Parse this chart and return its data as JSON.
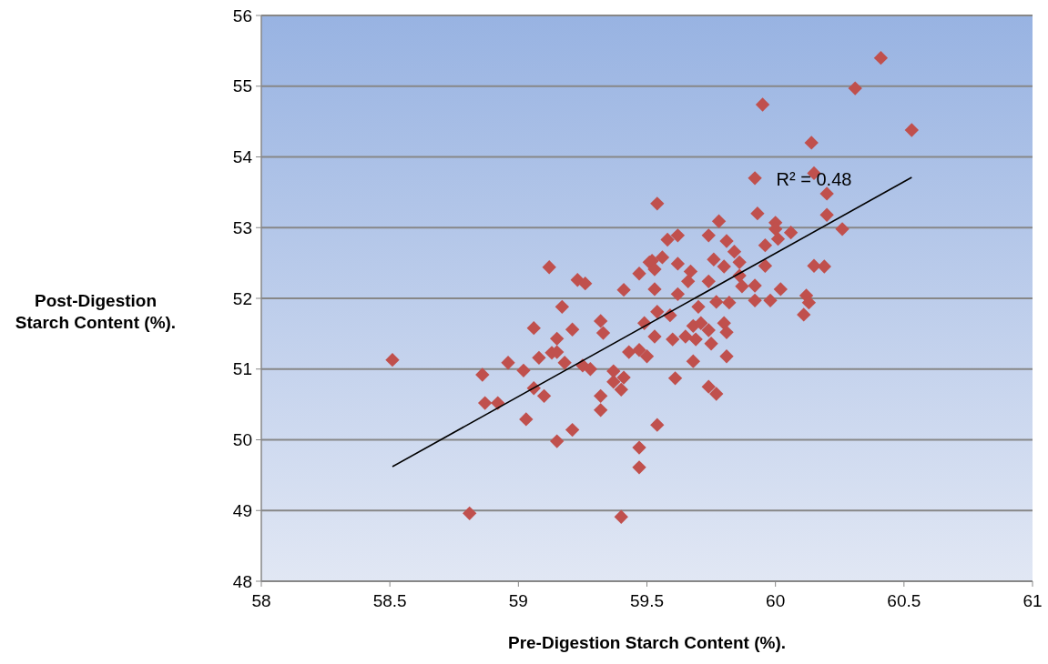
{
  "chart_data": {
    "type": "scatter",
    "xlabel": "Pre-Digestion Starch Content (%).",
    "ylabel": "Post-Digestion Starch Content (%).",
    "xlim": [
      58,
      61
    ],
    "xticks": [
      58,
      58.5,
      59,
      59.5,
      60,
      60.5,
      61
    ],
    "ylim": [
      48,
      56
    ],
    "yticks": [
      48,
      49,
      50,
      51,
      52,
      53,
      54,
      55,
      56
    ],
    "grid": "y",
    "marker": "diamond",
    "annotations": [
      {
        "text": "R² = 0.48",
        "x": 60.15,
        "y": 53.68
      }
    ],
    "series": [
      {
        "color": "#c0504d",
        "x": [
          58.51,
          58.81,
          58.86,
          58.87,
          58.92,
          58.96,
          59.02,
          59.03,
          59.06,
          59.06,
          59.1,
          59.08,
          59.12,
          59.13,
          59.15,
          59.15,
          59.15,
          59.17,
          59.18,
          59.21,
          59.21,
          59.23,
          59.26,
          59.25,
          59.28,
          59.32,
          59.33,
          59.32,
          59.32,
          59.37,
          59.37,
          59.4,
          59.41,
          59.41,
          59.4,
          59.43,
          59.47,
          59.5,
          59.49,
          59.53,
          59.47,
          59.51,
          59.53,
          59.47,
          59.47,
          59.92,
          59.54,
          59.93,
          59.78,
          60,
          60,
          60.06,
          60.01,
          59.96,
          59.74,
          59.58,
          59.62,
          59.81,
          59.84,
          59.86,
          59.56,
          59.52,
          59.53,
          59.62,
          59.76,
          59.8,
          59.96,
          59.67,
          59.66,
          59.74,
          59.86,
          59.87,
          59.92,
          60.02,
          60.15,
          60.19,
          59.62,
          59.77,
          59.82,
          59.92,
          59.98,
          60.12,
          60.13,
          60.11,
          59.7,
          59.54,
          59.59,
          59.68,
          59.71,
          59.8,
          59.81,
          59.6,
          59.65,
          59.69,
          59.74,
          59.75,
          59.68,
          59.81,
          59.61,
          59.74,
          59.77,
          59.54,
          60.41,
          60.31,
          59.95,
          60.53,
          60.14,
          60.15,
          60.2,
          60.2,
          60.26
        ],
        "values": [
          51.13,
          48.96,
          50.92,
          50.52,
          50.52,
          51.09,
          50.98,
          50.29,
          51.58,
          50.73,
          50.62,
          51.16,
          52.44,
          51.23,
          51.24,
          51.43,
          49.98,
          51.88,
          51.09,
          51.56,
          50.14,
          52.26,
          52.21,
          51.05,
          51,
          51.68,
          51.51,
          50.62,
          50.42,
          50.97,
          50.82,
          50.71,
          50.88,
          52.12,
          48.91,
          51.24,
          51.27,
          51.18,
          51.65,
          51.46,
          52.35,
          52.51,
          52.13,
          49.89,
          49.61,
          53.7,
          53.34,
          53.2,
          53.09,
          53.07,
          52.98,
          52.93,
          52.84,
          52.75,
          52.89,
          52.83,
          52.89,
          52.81,
          52.66,
          52.51,
          52.58,
          52.53,
          52.41,
          52.49,
          52.55,
          52.45,
          52.46,
          52.38,
          52.24,
          52.24,
          52.32,
          52.17,
          52.18,
          52.13,
          52.46,
          52.45,
          52.06,
          51.95,
          51.94,
          51.97,
          51.97,
          52.04,
          51.94,
          51.77,
          51.88,
          51.81,
          51.76,
          51.61,
          51.65,
          51.65,
          51.52,
          51.42,
          51.46,
          51.42,
          51.55,
          51.36,
          51.11,
          51.18,
          50.87,
          50.75,
          50.65,
          50.21,
          55.4,
          54.97,
          54.74,
          54.38,
          54.2,
          53.77,
          53.48,
          53.18,
          52.98
        ]
      },
      {
        "type": "line",
        "color": "#000000",
        "marker": "none",
        "x": [
          58.51,
          60.53
        ],
        "values": [
          49.62,
          53.71
        ]
      }
    ]
  }
}
